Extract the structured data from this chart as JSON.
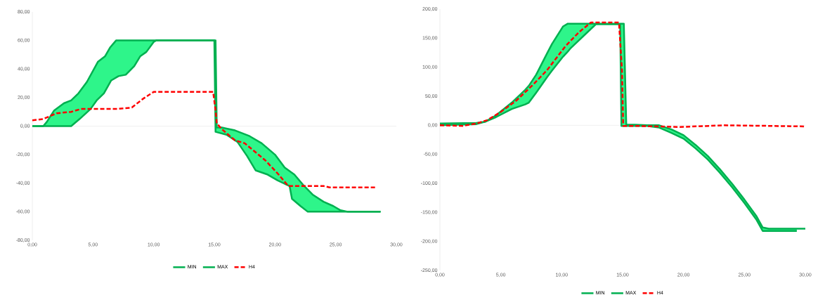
{
  "chart_data": [
    {
      "type": "line",
      "legend": "bottom",
      "marker": "none",
      "xlim": [
        0,
        30
      ],
      "ylim": [
        -80,
        80
      ],
      "xticks": [
        {
          "value": 0,
          "label": "0,00"
        },
        {
          "value": 5,
          "label": "5,00"
        },
        {
          "value": 10,
          "label": "10,00"
        },
        {
          "value": 15,
          "label": "15,00"
        },
        {
          "value": 20,
          "label": "20,00"
        },
        {
          "value": 25,
          "label": "25,00"
        },
        {
          "value": 30,
          "label": "30,00"
        }
      ],
      "yticks": [
        {
          "value": -80,
          "label": "-80,00"
        },
        {
          "value": -60,
          "label": "-60,00"
        },
        {
          "value": -40,
          "label": "-40,00"
        },
        {
          "value": -20,
          "label": "-20,00"
        },
        {
          "value": 0,
          "label": "0,00"
        },
        {
          "value": 20,
          "label": "20,00"
        },
        {
          "value": 40,
          "label": "40,00"
        },
        {
          "value": 60,
          "label": "60,00"
        },
        {
          "value": 80,
          "label": "80,00"
        }
      ],
      "series": [
        {
          "name": "MIN",
          "color": "#00b050",
          "line_style": "solid",
          "x": [
            0,
            3.2,
            3.9,
            4.8,
            5.3,
            5.9,
            6.5,
            7.1,
            7.7,
            8.4,
            8.9,
            9.4,
            10,
            10.2,
            15,
            15.1,
            16,
            16.9,
            17.7,
            18.4,
            19.4,
            20.2,
            21.2,
            21.4,
            22.1,
            22.7,
            28.7
          ],
          "values": [
            0,
            0,
            5,
            12,
            18,
            23,
            32,
            35,
            36,
            42,
            49,
            52,
            59,
            60,
            60,
            -4,
            -6,
            -11,
            -21,
            -31,
            -34,
            -38,
            -42,
            -51,
            -56,
            -60,
            -60
          ]
        },
        {
          "name": "MAX",
          "color": "#00b050",
          "line_style": "solid",
          "x": [
            0,
            0.9,
            1.2,
            1.8,
            2.6,
            3.2,
            3.8,
            4.5,
            5.4,
            6,
            6.4,
            6.9,
            15.1,
            15.2,
            15.6,
            16.7,
            17.9,
            18.9,
            20,
            20.8,
            21.6,
            22.3,
            23.1,
            24,
            24.8,
            25.4,
            26,
            28.7
          ],
          "values": [
            0,
            0,
            3,
            11,
            16,
            18,
            23,
            31,
            45,
            49,
            55,
            60,
            60,
            -1,
            -1,
            -3,
            -7,
            -12,
            -20,
            -29,
            -34,
            -41,
            -48,
            -53,
            -56,
            -59,
            -60,
            -60
          ]
        },
        {
          "name": "H4",
          "color": "#ff0000",
          "line_style": "dashed",
          "x": [
            0,
            0.9,
            2,
            3.2,
            4,
            7,
            8.2,
            9.1,
            10,
            14.9,
            15.1,
            15.2,
            15.6,
            16.7,
            17.5,
            19.2,
            20.2,
            21.1,
            24,
            24.5,
            28.3
          ],
          "values": [
            4,
            5,
            9,
            10,
            12,
            12,
            13,
            19,
            24,
            24,
            11,
            2,
            -2,
            -10,
            -12,
            -24,
            -33,
            -42,
            -42,
            -43,
            -43
          ]
        }
      ]
    },
    {
      "type": "line",
      "legend": "bottom",
      "marker": "none",
      "xlim": [
        0,
        30
      ],
      "ylim": [
        -250,
        200
      ],
      "xticks": [
        {
          "value": 0,
          "label": "0,00"
        },
        {
          "value": 5,
          "label": "5,00"
        },
        {
          "value": 10,
          "label": "10,00"
        },
        {
          "value": 15,
          "label": "15,00"
        },
        {
          "value": 20,
          "label": "20,00"
        },
        {
          "value": 25,
          "label": "25,00"
        },
        {
          "value": 30,
          "label": "30,00"
        }
      ],
      "yticks": [
        {
          "value": -250,
          "label": "-250,00"
        },
        {
          "value": -200,
          "label": "-200,00"
        },
        {
          "value": -150,
          "label": "-150,00"
        },
        {
          "value": -100,
          "label": "-100,00"
        },
        {
          "value": -50,
          "label": "-50,00"
        },
        {
          "value": 0,
          "label": "0,00"
        },
        {
          "value": 50,
          "label": "50,00"
        },
        {
          "value": 100,
          "label": "100,00"
        },
        {
          "value": 150,
          "label": "150,00"
        },
        {
          "value": 200,
          "label": "200,00"
        }
      ],
      "series": [
        {
          "name": "MIN",
          "color": "#00b050",
          "line_style": "solid",
          "x": [
            0,
            3,
            3.7,
            4.6,
            5.9,
            7,
            7.3,
            7.9,
            8.8,
            9.2,
            10.1,
            10.5,
            10.7,
            12.8,
            14.8,
            14.9,
            15.1,
            15.3,
            16,
            17,
            18,
            19,
            20,
            21,
            22,
            23,
            24,
            25,
            26,
            26.5,
            27,
            29.3
          ],
          "values": [
            0,
            2,
            6,
            14,
            28,
            36,
            39,
            56,
            83,
            94,
            118,
            127,
            132,
            174,
            174,
            -1,
            -1,
            -1,
            -1,
            -1,
            -4,
            -13,
            -23,
            -40,
            -59,
            -82,
            -107,
            -134,
            -163,
            -182,
            -182,
            -182
          ]
        },
        {
          "name": "MAX",
          "color": "#00b050",
          "line_style": "solid",
          "x": [
            0,
            3,
            3.7,
            4.6,
            5.9,
            7,
            7.3,
            7.9,
            8.8,
            9.2,
            10.1,
            10.5,
            10.7,
            12.8,
            14.8,
            14.9,
            15.1,
            15.3,
            16,
            17,
            18,
            19,
            20,
            21,
            22,
            23,
            24,
            25,
            26,
            26.5,
            27,
            29.3,
            30
          ],
          "values": [
            3,
            4,
            6,
            17,
            39,
            61,
            68,
            87,
            124,
            140,
            170,
            175,
            175,
            175,
            175,
            175,
            175,
            1,
            1,
            0,
            0,
            -7,
            -17,
            -34,
            -53,
            -76,
            -101,
            -128,
            -157,
            -176,
            -178,
            -178,
            -178
          ]
        },
        {
          "name": "H4",
          "color": "#ff0000",
          "line_style": "dashed",
          "x": [
            0,
            1.9,
            3,
            3.9,
            5,
            6.3,
            7.7,
            8.8,
            10.3,
            11.4,
            12.4,
            14.7,
            14.95,
            15.05,
            16,
            19.7,
            23.3,
            26.9,
            30
          ],
          "values": [
            0,
            -1,
            3,
            9,
            23,
            43,
            71,
            95,
            136,
            160,
            177,
            177,
            95,
            -1,
            -1,
            -3,
            0,
            -1,
            -2
          ]
        }
      ]
    }
  ]
}
